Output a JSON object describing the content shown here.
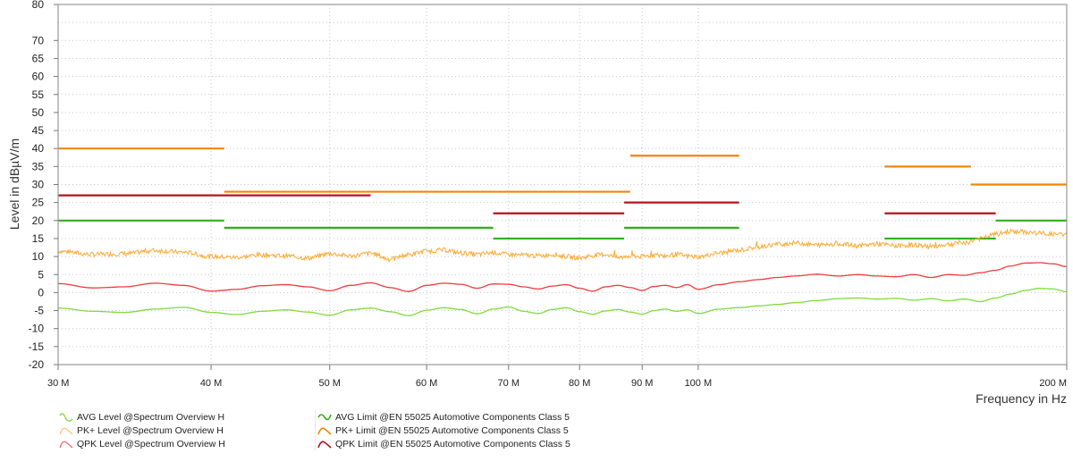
{
  "chart_data": {
    "type": "line",
    "title": "",
    "xlabel": "Frequency in Hz",
    "ylabel": "Level in dBµV/m",
    "x_scale": "log",
    "xlim": [
      30000000,
      200000000
    ],
    "ylim": [
      -20,
      80
    ],
    "grid": true,
    "y_ticks": [
      80,
      70,
      65,
      60,
      55,
      50,
      45,
      40,
      35,
      30,
      25,
      20,
      15,
      10,
      5,
      0,
      -5,
      -10,
      -15,
      -20
    ],
    "y_gridlines": [
      75,
      70,
      65,
      60,
      55,
      50,
      45,
      40,
      35,
      30,
      25,
      20,
      15,
      10,
      5,
      0,
      -5,
      -10,
      -15
    ],
    "x_ticks": [
      {
        "value": 30,
        "label": "30 M"
      },
      {
        "value": 40,
        "label": "40 M"
      },
      {
        "value": 50,
        "label": "50 M"
      },
      {
        "value": 60,
        "label": "60 M"
      },
      {
        "value": 70,
        "label": "70 M"
      },
      {
        "value": 80,
        "label": "80 M"
      },
      {
        "value": 90,
        "label": "90 M"
      },
      {
        "value": 100,
        "label": "100 M"
      },
      {
        "value": 200,
        "label": "200 M"
      }
    ],
    "legend_position": "bottom",
    "series": [
      {
        "name": "AVG Level @Spectrum Overview H",
        "color": "#7fdc3c",
        "kind": "trace",
        "x_mhz": [
          30,
          32,
          34,
          36,
          38,
          40,
          42,
          44,
          46,
          48,
          50,
          52,
          54,
          56,
          58,
          60,
          62,
          64,
          66,
          68,
          70,
          72,
          74,
          76,
          78,
          80,
          82,
          84,
          86,
          88,
          90,
          92,
          94,
          96,
          98,
          100,
          104,
          108,
          112,
          116,
          120,
          125,
          130,
          135,
          140,
          145,
          150,
          155,
          160,
          165,
          170,
          175,
          180,
          185,
          190,
          195,
          200
        ],
        "values": [
          -4.3,
          -5.2,
          -5.5,
          -4.6,
          -4.1,
          -5.5,
          -6.1,
          -5.2,
          -4.8,
          -5.4,
          -6.3,
          -4.8,
          -4.3,
          -5.3,
          -6.4,
          -4.9,
          -4.2,
          -4.7,
          -5.9,
          -4.6,
          -4.0,
          -5.2,
          -5.8,
          -4.7,
          -4.2,
          -5.3,
          -6.0,
          -5.1,
          -4.7,
          -5.4,
          -6.0,
          -5.0,
          -4.6,
          -5.2,
          -4.8,
          -5.8,
          -4.6,
          -4.2,
          -3.7,
          -3.3,
          -2.8,
          -2.2,
          -1.7,
          -1.5,
          -1.8,
          -1.6,
          -2.1,
          -1.7,
          -2.3,
          -1.8,
          -2.5,
          -1.5,
          -0.4,
          0.6,
          1.2,
          1.0,
          0.2
        ]
      },
      {
        "name": "PK+ Level @Spectrum Overview H",
        "color": "#ffa930",
        "kind": "trace",
        "x_mhz": [
          30,
          32,
          34,
          36,
          38,
          40,
          42,
          44,
          46,
          48,
          50,
          52,
          54,
          56,
          58,
          60,
          62,
          64,
          66,
          68,
          70,
          72,
          74,
          76,
          78,
          80,
          82,
          84,
          86,
          88,
          90,
          92,
          94,
          96,
          98,
          100,
          104,
          108,
          112,
          116,
          120,
          125,
          130,
          135,
          140,
          145,
          150,
          155,
          160,
          165,
          170,
          175,
          180,
          185,
          190,
          195,
          200
        ],
        "values": [
          11.5,
          10.6,
          10.8,
          11.7,
          11.2,
          10.0,
          9.8,
          10.5,
          10.2,
          9.6,
          10.8,
          10.2,
          10.9,
          9.3,
          10.5,
          11.5,
          11.8,
          11.0,
          10.6,
          11.1,
          10.6,
          10.4,
          10.2,
          10.6,
          10.0,
          9.6,
          10.3,
          10.6,
          9.7,
          10.2,
          10.0,
          10.4,
          10.2,
          10.6,
          10.1,
          9.9,
          11.0,
          11.8,
          12.6,
          13.4,
          13.8,
          13.2,
          13.6,
          13.0,
          13.5,
          13.0,
          13.2,
          12.8,
          13.4,
          13.8,
          15.0,
          16.2,
          17.0,
          16.8,
          16.5,
          16.2,
          16.0
        ]
      },
      {
        "name": "QPK Level @Spectrum Overview H",
        "color": "#ee3c3c",
        "kind": "trace",
        "x_mhz": [
          30,
          32,
          34,
          36,
          38,
          40,
          42,
          44,
          46,
          48,
          50,
          52,
          54,
          56,
          58,
          60,
          62,
          64,
          66,
          68,
          70,
          72,
          74,
          76,
          78,
          80,
          82,
          84,
          86,
          88,
          90,
          92,
          94,
          96,
          98,
          100,
          104,
          108,
          112,
          116,
          120,
          125,
          130,
          135,
          140,
          145,
          150,
          155,
          160,
          165,
          170,
          175,
          180,
          185,
          190,
          195,
          200
        ],
        "values": [
          2.5,
          1.3,
          1.6,
          2.6,
          2.0,
          0.4,
          0.9,
          1.9,
          2.2,
          1.6,
          0.5,
          2.0,
          2.7,
          1.4,
          0.3,
          2.0,
          2.6,
          2.3,
          1.2,
          2.4,
          2.3,
          1.6,
          1.0,
          1.8,
          2.2,
          1.2,
          0.4,
          1.6,
          2.0,
          1.4,
          0.6,
          1.7,
          2.0,
          1.4,
          2.2,
          0.9,
          2.2,
          3.0,
          3.6,
          4.2,
          4.6,
          5.1,
          4.6,
          5.0,
          4.6,
          4.4,
          5.0,
          4.2,
          5.0,
          4.8,
          5.5,
          6.2,
          7.4,
          8.2,
          8.3,
          8.0,
          7.2
        ]
      },
      {
        "name": "AVG Limit @EN 55025 Automotive Components Class 5",
        "color": "#2eb016",
        "kind": "limit",
        "segments": [
          {
            "f_start": 30,
            "f_end": 41,
            "level": 20
          },
          {
            "f_start": 41,
            "f_end": 68,
            "level": 18
          },
          {
            "f_start": 68,
            "f_end": 87,
            "level": 15
          },
          {
            "f_start": 87,
            "f_end": 108,
            "level": 18
          },
          {
            "f_start": 142,
            "f_end": 175,
            "level": 15
          },
          {
            "f_start": 175,
            "f_end": 200,
            "level": 20
          }
        ]
      },
      {
        "name": "PK+ Limit @EN 55025 Automotive Components Class 5",
        "color": "#f0860a",
        "kind": "limit",
        "segments": [
          {
            "f_start": 30,
            "f_end": 41,
            "level": 40
          },
          {
            "f_start": 41,
            "f_end": 88,
            "level": 28
          },
          {
            "f_start": 88,
            "f_end": 108,
            "level": 38
          },
          {
            "f_start": 142,
            "f_end": 167,
            "level": 35
          },
          {
            "f_start": 167,
            "f_end": 200,
            "level": 30
          }
        ]
      },
      {
        "name": "QPK Limit @EN 55025 Automotive Components Class 5",
        "color": "#b4141e",
        "kind": "limit",
        "segments": [
          {
            "f_start": 30,
            "f_end": 54,
            "level": 27
          },
          {
            "f_start": 68,
            "f_end": 87,
            "level": 22
          },
          {
            "f_start": 87,
            "f_end": 108,
            "level": 25
          },
          {
            "f_start": 142,
            "f_end": 175,
            "level": 22
          }
        ]
      }
    ]
  },
  "legend": {
    "col1": [
      {
        "label": "AVG Level @Spectrum Overview H",
        "color": "#7fdc3c"
      },
      {
        "label": "PK+ Level @Spectrum Overview H",
        "color": "#ffc27a"
      },
      {
        "label": "QPK Level @Spectrum Overview H",
        "color": "#ee6a6a"
      }
    ],
    "col2": [
      {
        "label": "AVG Limit @EN 55025 Automotive Components Class 5",
        "color": "#2eb016"
      },
      {
        "label": "PK+ Limit @EN 55025 Automotive Components Class 5",
        "color": "#f0860a"
      },
      {
        "label": "QPK Limit @EN 55025 Automotive Components Class 5",
        "color": "#b4141e"
      }
    ]
  }
}
